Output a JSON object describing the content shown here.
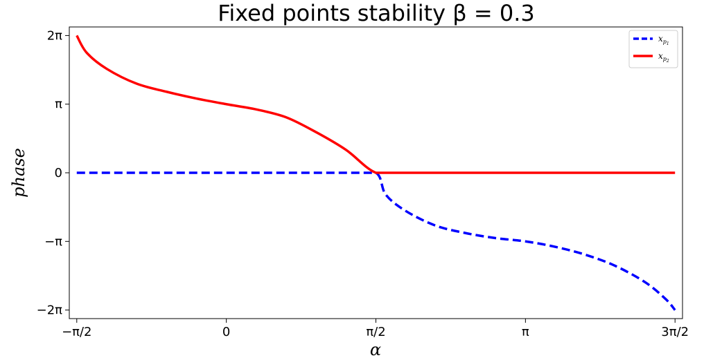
{
  "chart_data": {
    "type": "line",
    "title": "Fixed points stability β = 0.3",
    "xlabel": "α",
    "ylabel": "phase",
    "x_units": "radians",
    "y_units": "radians",
    "xlim": [
      -1.6493,
      4.7909
    ],
    "ylim": [
      -6.6759,
      6.6759
    ],
    "x_ticks": [
      {
        "value": -1.5708,
        "label": "−π/2"
      },
      {
        "value": 0,
        "label": "0"
      },
      {
        "value": 1.5708,
        "label": "π/2"
      },
      {
        "value": 3.1416,
        "label": "π"
      },
      {
        "value": 4.7124,
        "label": "3π/2"
      }
    ],
    "y_ticks": [
      {
        "value": 6.2832,
        "label": "2π"
      },
      {
        "value": 3.1416,
        "label": "π"
      },
      {
        "value": 0,
        "label": "0"
      },
      {
        "value": -3.1416,
        "label": "−π"
      },
      {
        "value": -6.2832,
        "label": "−2π"
      }
    ],
    "grid": false,
    "legend_position": "top-right",
    "series": [
      {
        "name": "x_{p_1}",
        "color": "#0000ff",
        "linestyle": "dashed",
        "x": [
          -1.5708,
          -1.2566,
          -0.9425,
          -0.6283,
          -0.3142,
          0,
          0.3142,
          0.6283,
          0.9425,
          1.2566,
          1.5708,
          1.6744,
          1.885,
          2.1991,
          2.5133,
          2.8274,
          3.1416,
          3.4558,
          3.7699,
          4.0841,
          4.3982,
          4.6138,
          4.7124
        ],
        "y": [
          0,
          0,
          0,
          0,
          0,
          0,
          0,
          0,
          0,
          0,
          0,
          -1.0,
          -1.75,
          -2.42,
          -2.76,
          -2.99,
          -3.14,
          -3.39,
          -3.75,
          -4.26,
          -5.01,
          -5.78,
          -6.2832
        ]
      },
      {
        "name": "x_{p_2}",
        "color": "#ff0000",
        "linestyle": "solid",
        "x": [
          -1.5708,
          -1.4672,
          -1.2566,
          -0.9425,
          -0.6283,
          -0.3142,
          0,
          0.3142,
          0.6283,
          0.9425,
          1.2566,
          1.5708,
          1.885,
          2.1991,
          2.5133,
          2.8274,
          3.1416,
          3.4558,
          3.7699,
          4.0841,
          4.3982,
          4.7124
        ],
        "y": [
          6.2832,
          5.5,
          4.76,
          4.08,
          3.71,
          3.4,
          3.14,
          2.9,
          2.54,
          1.86,
          1.05,
          0,
          0,
          0,
          0,
          0,
          0,
          0,
          0,
          0,
          0,
          0
        ]
      }
    ]
  }
}
